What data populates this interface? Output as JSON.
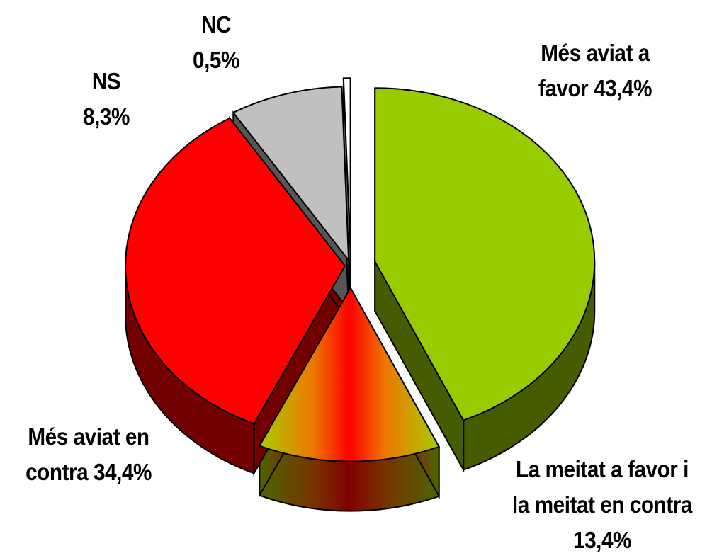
{
  "chart_data": {
    "type": "pie",
    "categories": [
      "Més aviat a favor",
      "La meitat a favor i la meitat en contra",
      "Més aviat en contra",
      "NS",
      "NC"
    ],
    "values": [
      43.4,
      13.4,
      34.4,
      8.3,
      0.5
    ],
    "value_labels": [
      "43,4%",
      "13,4%",
      "34,4%",
      "8,3%",
      "0,5%"
    ],
    "colors": [
      "#99cc00",
      "#ff2200",
      "#ff0000",
      "#c0c0c0",
      "#ffffff"
    ]
  }
}
